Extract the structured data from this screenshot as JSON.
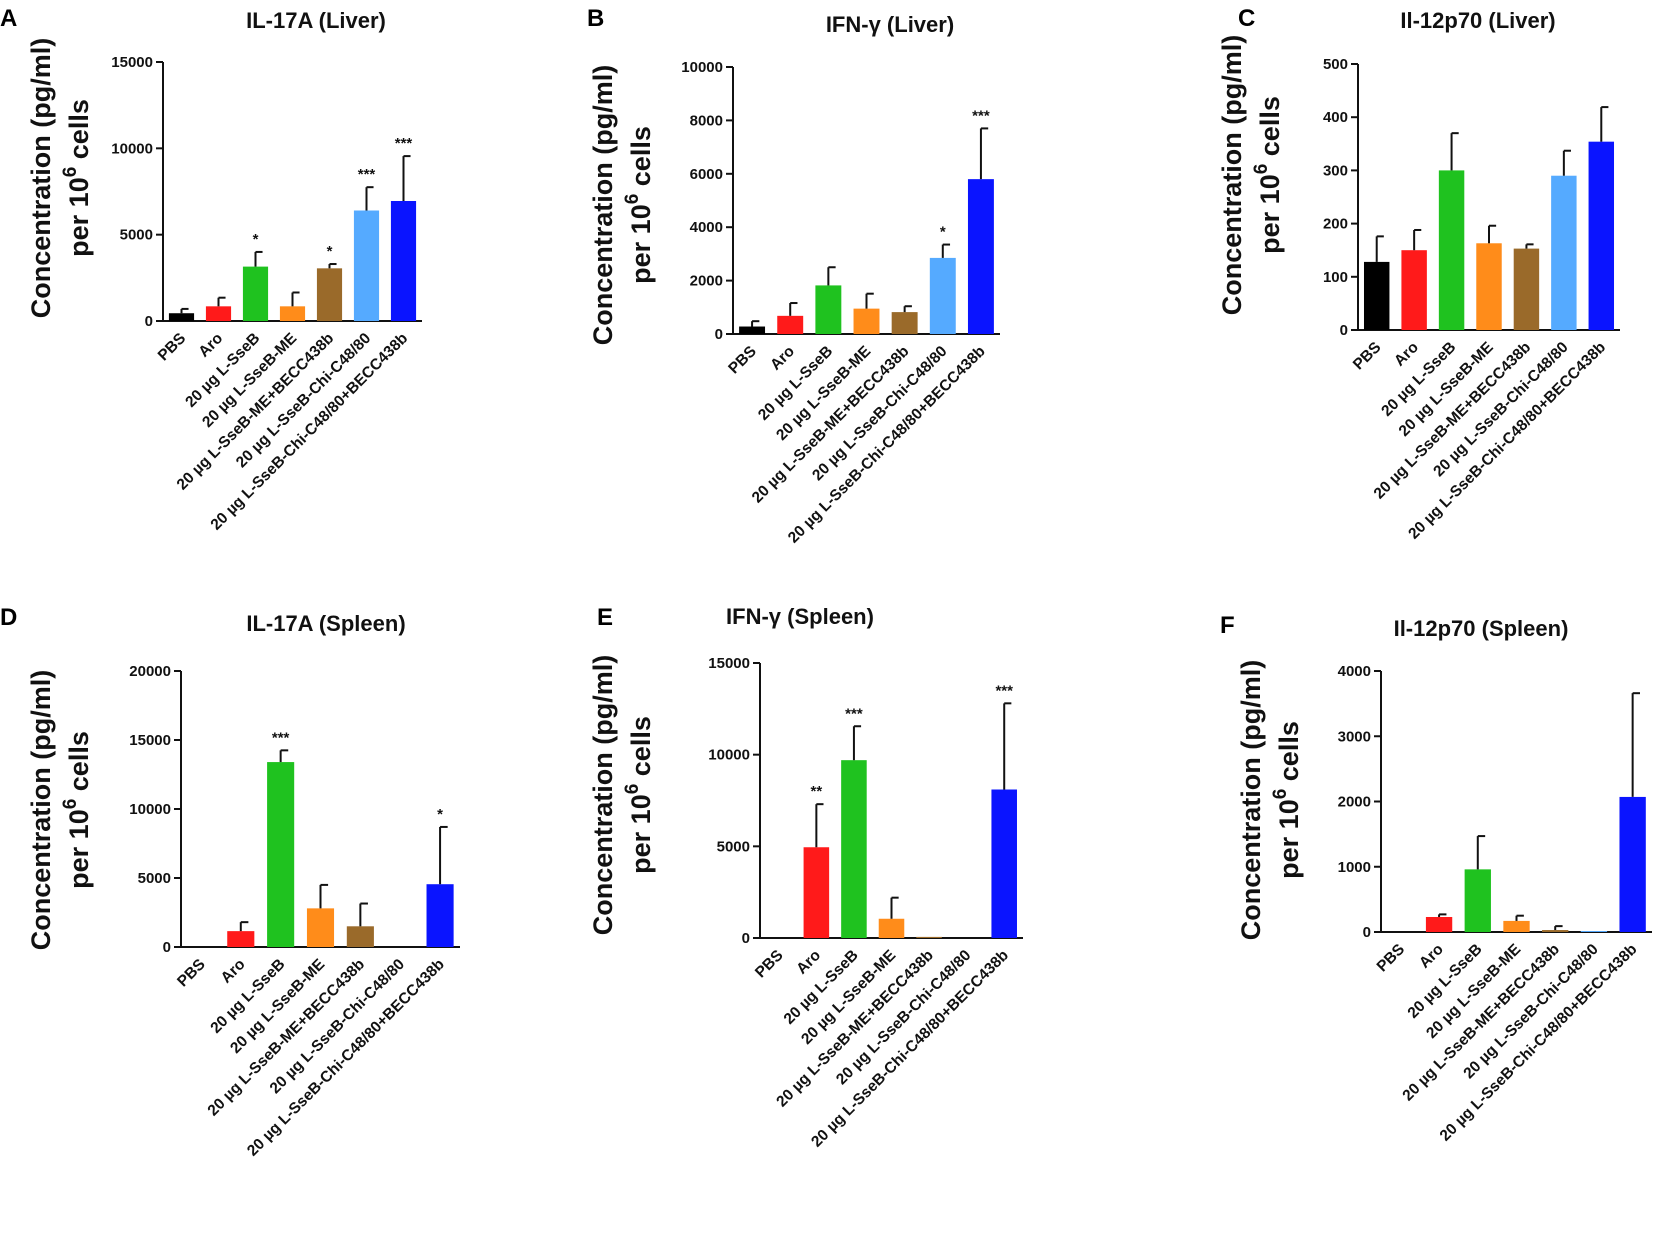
{
  "figure": {
    "categories": [
      "PBS",
      "Aro",
      "20 µg L-SseB",
      "20 µg L-SseB-ME",
      "20 µg L-SseB-ME+BECC438b",
      "20 µg L-SseB-Chi-C48/80",
      "20 µg L-SseB-Chi-C48/80+BECC438b"
    ],
    "colors": [
      "#000000",
      "#ff1a1a",
      "#1fc21f",
      "#ff8c1a",
      "#9a6a2a",
      "#55aaff",
      "#0a14ff"
    ],
    "ylabel_line1": "Concentration (pg/ml)",
    "ylabel_line2_prefix": "per 10",
    "ylabel_line2_sup": "6",
    "ylabel_line2_suffix": " cells"
  },
  "chart_data": [
    {
      "panel": "A",
      "type": "bar",
      "title": "IL-17A (Liver)",
      "ylim": [
        0,
        15000
      ],
      "yticks": [
        0,
        5000,
        10000,
        15000
      ],
      "values": [
        450,
        850,
        3150,
        850,
        3050,
        6400,
        6950
      ],
      "errors": [
        250,
        500,
        850,
        800,
        250,
        1350,
        2600
      ],
      "significance": [
        "",
        "",
        "*",
        "",
        "*",
        "***",
        "***"
      ]
    },
    {
      "panel": "B",
      "type": "bar",
      "title": "IFN-γ (Liver)",
      "ylim": [
        0,
        10000
      ],
      "yticks": [
        0,
        2000,
        4000,
        6000,
        8000,
        10000
      ],
      "values": [
        280,
        680,
        1820,
        950,
        820,
        2850,
        5800
      ],
      "errors": [
        200,
        480,
        680,
        560,
        220,
        500,
        1900
      ],
      "significance": [
        "",
        "",
        "",
        "",
        "",
        "*",
        "***"
      ]
    },
    {
      "panel": "C",
      "type": "bar",
      "title": "Il-12p70 (Liver)",
      "ylim": [
        0,
        500
      ],
      "yticks": [
        0,
        100,
        200,
        300,
        400,
        500
      ],
      "values": [
        128,
        150,
        300,
        163,
        153,
        290,
        354
      ],
      "errors": [
        48,
        38,
        70,
        33,
        8,
        47,
        65
      ],
      "significance": [
        "",
        "",
        "",
        "",
        "",
        "",
        ""
      ]
    },
    {
      "panel": "D",
      "type": "bar",
      "title": "IL-17A (Spleen)",
      "ylim": [
        0,
        20000
      ],
      "yticks": [
        0,
        5000,
        10000,
        15000,
        20000
      ],
      "values": [
        0,
        1150,
        13400,
        2800,
        1500,
        0,
        4550
      ],
      "errors": [
        0,
        650,
        850,
        1700,
        1650,
        0,
        4150
      ],
      "significance": [
        "",
        "",
        "***",
        "",
        "",
        "",
        "*"
      ]
    },
    {
      "panel": "E",
      "type": "bar",
      "title": "IFN-γ (Spleen)",
      "ylim": [
        0,
        15000
      ],
      "yticks": [
        0,
        5000,
        10000,
        15000
      ],
      "values": [
        0,
        4950,
        9700,
        1050,
        60,
        0,
        8100
      ],
      "errors": [
        0,
        2350,
        1850,
        1150,
        0,
        0,
        4700
      ],
      "significance": [
        "",
        "**",
        "***",
        "",
        "",
        "",
        "***"
      ]
    },
    {
      "panel": "F",
      "type": "bar",
      "title": "Il-12p70 (Spleen)",
      "ylim": [
        0,
        4000
      ],
      "yticks": [
        0,
        1000,
        2000,
        3000,
        4000
      ],
      "values": [
        0,
        230,
        960,
        170,
        30,
        15,
        2070
      ],
      "errors": [
        0,
        40,
        510,
        80,
        60,
        0,
        1590
      ],
      "significance": [
        "",
        "",
        "",
        "",
        "",
        "",
        ""
      ]
    }
  ]
}
